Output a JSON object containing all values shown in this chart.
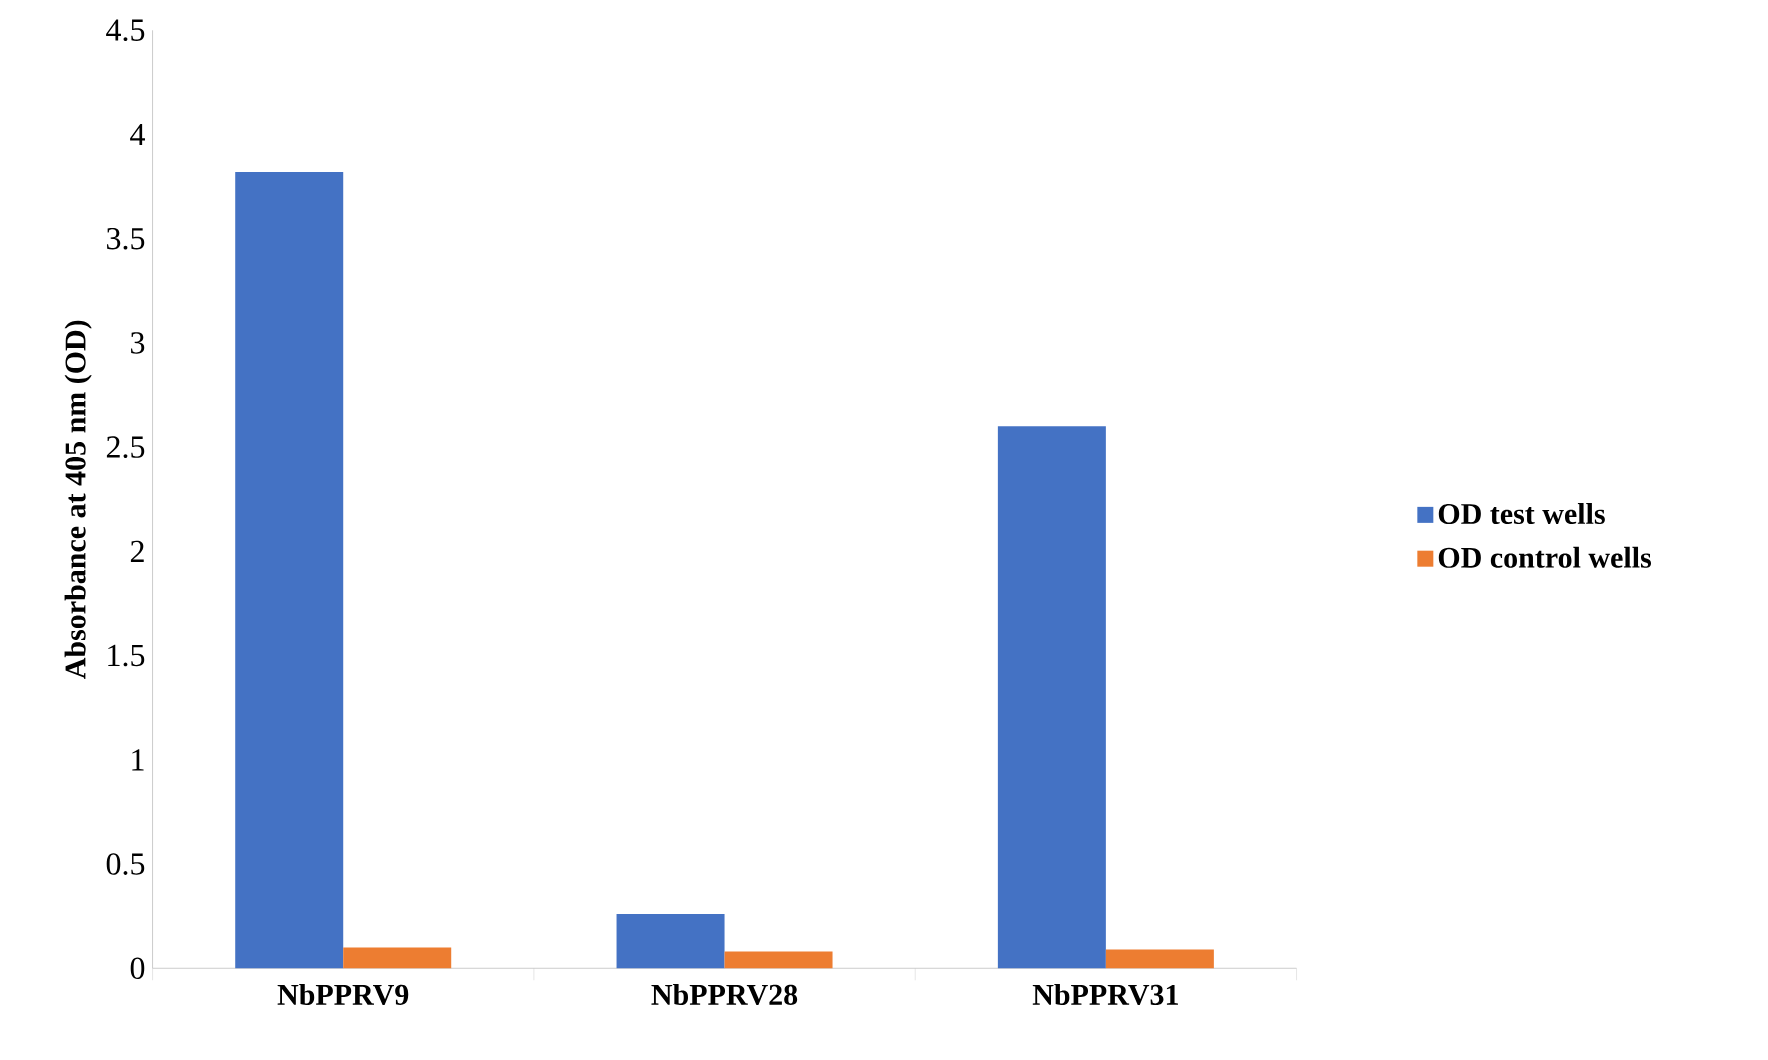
{
  "chart_data": {
    "type": "bar",
    "ylabel": "Absorbance at 405 nm (OD)",
    "categories": [
      "NbPPRV9",
      "NbPPRV28",
      "NbPPRV31"
    ],
    "series": [
      {
        "name": "OD test wells",
        "color": "#4472c4",
        "values": [
          3.82,
          0.26,
          2.6
        ]
      },
      {
        "name": "OD control wells",
        "color": "#ed7d31",
        "values": [
          0.1,
          0.08,
          0.09
        ]
      }
    ],
    "ylim": [
      0,
      4.5
    ],
    "yticks": [
      0,
      0.5,
      1,
      1.5,
      2,
      2.5,
      3,
      3.5,
      4,
      4.5
    ],
    "grid": false,
    "legend": "right"
  }
}
